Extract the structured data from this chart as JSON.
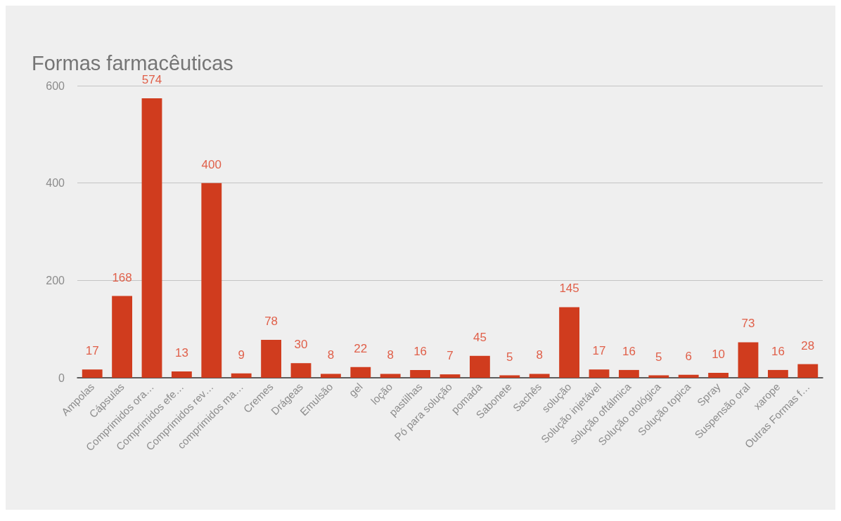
{
  "chart_data": {
    "type": "bar",
    "title": "Formas farmacêuticas",
    "categories": [
      "Ampolas",
      "Cápsulas",
      "Comprimidos ora…",
      "Comprimidos efe…",
      "Comprimidos rev…",
      "comprimidos ma…",
      "Cremes",
      "Drágeas",
      "Emulsão",
      "gel",
      "loção",
      "pastilhas",
      "Pó para solução",
      "pomada",
      "Sabonete",
      "Sachês",
      "solução",
      "Solução injetável",
      "solução oftálmica",
      "Solução otológica",
      "Solução topica",
      "Spray",
      "Suspensão oral",
      "xarope",
      "Outras Formas f…"
    ],
    "values": [
      17,
      168,
      574,
      13,
      400,
      9,
      78,
      30,
      8,
      22,
      8,
      16,
      7,
      45,
      5,
      8,
      145,
      17,
      16,
      5,
      6,
      10,
      73,
      16,
      28
    ],
    "color": "#d03c1e",
    "ylim": [
      0,
      600
    ],
    "yticks": [
      0,
      200,
      400,
      600
    ],
    "grid": "y",
    "data_labels": true
  }
}
